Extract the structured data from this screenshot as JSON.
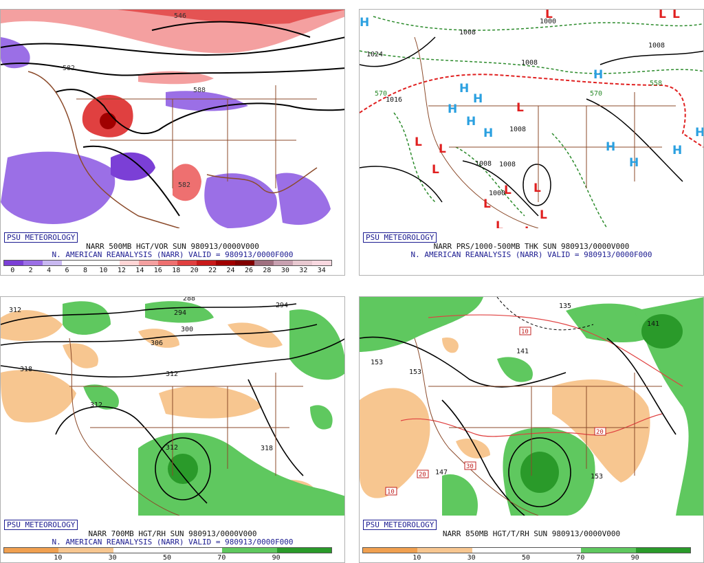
{
  "panels": [
    {
      "logo": "PSU METEOROLOGY",
      "title": "NARR 500MB HGT/VOR SUN 980913/0000V000",
      "subtitle": "N. AMERICAN REANALYSIS (NARR) VALID = 980913/0000F000",
      "colorbar": {
        "colors": [
          "#7b3fd6",
          "#9b6fe6",
          "#c8b8f0",
          "#ffffff",
          "#ffffff",
          "#ffffff",
          "#ffd6d6",
          "#f4a0a0",
          "#ee7070",
          "#e04040",
          "#c81a1a",
          "#a00000",
          "#800000",
          "#a07080",
          "#c8a0b0",
          "#e8c8d0",
          "#f8d8e0"
        ],
        "ticks": [
          "0",
          "2",
          "4",
          "6",
          "8",
          "10",
          "12",
          "14",
          "16",
          "18",
          "20",
          "22",
          "24",
          "26",
          "28",
          "30",
          "32",
          "34"
        ]
      },
      "labels": [
        "546",
        "582",
        "582",
        "588"
      ]
    },
    {
      "logo": "PSU METEOROLOGY",
      "title": "NARR PRS/1000-500MB THK SUN 980913/0000V000",
      "subtitle": "N. AMERICAN REANALYSIS (NARR) VALID = 980913/0000F000",
      "labels": [
        "1024",
        "1016",
        "1000",
        "1008",
        "1008",
        "1008",
        "1008",
        "1008",
        "1000",
        "1008",
        "570",
        "570",
        "558"
      ],
      "highs": "H",
      "lows": "L"
    },
    {
      "logo": "PSU METEOROLOGY",
      "title": "NARR 700MB HGT/RH SUN 980913/0000V000",
      "subtitle": "N. AMERICAN REANALYSIS (NARR) VALID = 980913/0000F000",
      "colorbar": {
        "colors": [
          "#f0a050",
          "#f7c690",
          "#ffffff",
          "#ffffff",
          "#5fc85f",
          "#2a9a2a"
        ],
        "ticks": [
          "10",
          "30",
          "50",
          "70",
          "90"
        ]
      },
      "labels": [
        "312",
        "318",
        "306",
        "300",
        "312",
        "312",
        "312",
        "318",
        "294",
        "288",
        "294"
      ]
    },
    {
      "logo": "PSU METEOROLOGY",
      "title": "NARR 850MB HGT/T/RH SUN 980913/0000V000",
      "subtitle": "",
      "colorbar": {
        "colors": [
          "#f0a050",
          "#f7c690",
          "#ffffff",
          "#ffffff",
          "#5fc85f",
          "#2a9a2a"
        ],
        "ticks": [
          "10",
          "30",
          "50",
          "70",
          "90"
        ]
      },
      "labels": [
        "153",
        "153",
        "147",
        "141",
        "135",
        "141",
        "10",
        "20",
        "30",
        "20",
        "10",
        "153"
      ]
    }
  ]
}
